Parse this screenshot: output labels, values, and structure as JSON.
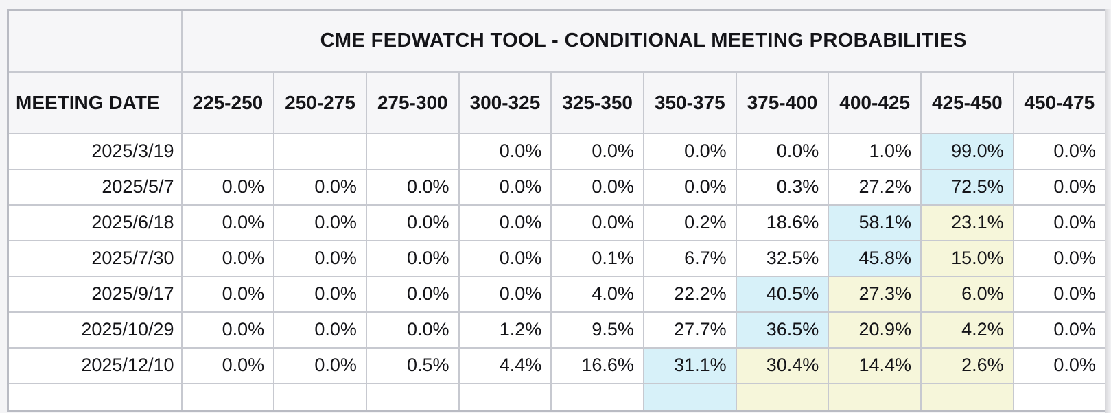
{
  "table": {
    "title": "CME FEDWATCH TOOL - CONDITIONAL MEETING PROBABILITIES",
    "meeting_date_header": "MEETING DATE",
    "rate_columns": [
      "225-250",
      "250-275",
      "275-300",
      "300-325",
      "325-350",
      "350-375",
      "375-400",
      "400-425",
      "425-450",
      "450-475"
    ],
    "rows": [
      {
        "date": "2025/3/19",
        "values": [
          "",
          "",
          "",
          "0.0%",
          "0.0%",
          "0.0%",
          "0.0%",
          "1.0%",
          "99.0%",
          "0.0%"
        ],
        "highlights": [
          "",
          "",
          "",
          "",
          "",
          "",
          "",
          "",
          "blue",
          ""
        ]
      },
      {
        "date": "2025/5/7",
        "values": [
          "0.0%",
          "0.0%",
          "0.0%",
          "0.0%",
          "0.0%",
          "0.0%",
          "0.3%",
          "27.2%",
          "72.5%",
          "0.0%"
        ],
        "highlights": [
          "",
          "",
          "",
          "",
          "",
          "",
          "",
          "",
          "blue",
          ""
        ]
      },
      {
        "date": "2025/6/18",
        "values": [
          "0.0%",
          "0.0%",
          "0.0%",
          "0.0%",
          "0.0%",
          "0.2%",
          "18.6%",
          "58.1%",
          "23.1%",
          "0.0%"
        ],
        "highlights": [
          "",
          "",
          "",
          "",
          "",
          "",
          "",
          "blue",
          "yellow",
          ""
        ]
      },
      {
        "date": "2025/7/30",
        "values": [
          "0.0%",
          "0.0%",
          "0.0%",
          "0.0%",
          "0.1%",
          "6.7%",
          "32.5%",
          "45.8%",
          "15.0%",
          "0.0%"
        ],
        "highlights": [
          "",
          "",
          "",
          "",
          "",
          "",
          "",
          "blue",
          "yellow",
          ""
        ]
      },
      {
        "date": "2025/9/17",
        "values": [
          "0.0%",
          "0.0%",
          "0.0%",
          "0.0%",
          "4.0%",
          "22.2%",
          "40.5%",
          "27.3%",
          "6.0%",
          "0.0%"
        ],
        "highlights": [
          "",
          "",
          "",
          "",
          "",
          "",
          "blue",
          "yellow",
          "yellow",
          ""
        ]
      },
      {
        "date": "2025/10/29",
        "values": [
          "0.0%",
          "0.0%",
          "0.0%",
          "1.2%",
          "9.5%",
          "27.7%",
          "36.5%",
          "20.9%",
          "4.2%",
          "0.0%"
        ],
        "highlights": [
          "",
          "",
          "",
          "",
          "",
          "",
          "blue",
          "yellow",
          "yellow",
          ""
        ]
      },
      {
        "date": "2025/12/10",
        "values": [
          "0.0%",
          "0.0%",
          "0.5%",
          "4.4%",
          "16.6%",
          "31.1%",
          "30.4%",
          "14.4%",
          "2.6%",
          "0.0%"
        ],
        "highlights": [
          "",
          "",
          "",
          "",
          "",
          "blue",
          "yellow",
          "yellow",
          "yellow",
          ""
        ]
      }
    ],
    "partial_row": {
      "values": [
        "",
        "",
        "",
        "",
        "",
        "",
        "",
        "",
        "",
        ""
      ],
      "highlights": [
        "",
        "",
        "",
        "",
        "",
        "blue",
        "yellow",
        "yellow",
        "yellow",
        ""
      ]
    },
    "colors": {
      "highlight_blue": "#d7f1f9",
      "highlight_yellow": "#f6f6da",
      "border": "#c7c9d0",
      "header_bg": "#f6f6f8",
      "cell_bg": "#ffffff",
      "text": "#141418"
    }
  }
}
